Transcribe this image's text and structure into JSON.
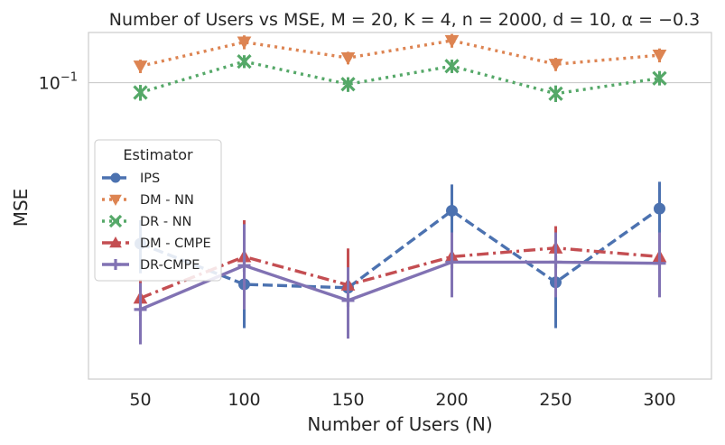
{
  "chart_data": {
    "type": "line",
    "title": "Number of Users vs MSE,  M = 20, K = 4, n = 2000, d = 10, α = −0.3",
    "xlabel": "Number of Users (N)",
    "ylabel": "MSE",
    "x": [
      50,
      100,
      150,
      200,
      250,
      300
    ],
    "x_tick_labels": [
      "50",
      "100",
      "150",
      "200",
      "250",
      "300"
    ],
    "y_scale": "log",
    "y_tick_label": "10−1",
    "y_tick_value": 0.1,
    "ylim": [
      0.00695,
      0.157
    ],
    "grid": true,
    "legend": {
      "title": "Estimator",
      "placement": "center-left"
    },
    "series": [
      {
        "name": "IPS",
        "color": "#4c72b0",
        "marker": "circle",
        "dash": "dashed",
        "values": [
          0.0235,
          0.0163,
          0.0158,
          0.0316,
          0.0166,
          0.0322
        ],
        "ci_low": [
          0.018,
          0.011,
          0.0115,
          0.022,
          0.011,
          0.021
        ],
        "ci_high": [
          0.029,
          0.022,
          0.021,
          0.04,
          0.024,
          0.041
        ]
      },
      {
        "name": "DM - NN",
        "color": "#dd8452",
        "marker": "triangle-down",
        "dash": "dotted",
        "values": [
          0.116,
          0.144,
          0.125,
          0.146,
          0.118,
          0.128
        ],
        "ci_low": [
          0.109,
          0.135,
          0.118,
          0.137,
          0.111,
          0.12
        ],
        "ci_high": [
          0.123,
          0.153,
          0.132,
          0.155,
          0.125,
          0.136
        ]
      },
      {
        "name": "DR - NN",
        "color": "#55a868",
        "marker": "x",
        "dash": "dotted",
        "values": [
          0.0915,
          0.121,
          0.0986,
          0.116,
          0.0906,
          0.104
        ],
        "ci_low": [
          0.085,
          0.114,
          0.092,
          0.109,
          0.084,
          0.0975
        ],
        "ci_high": [
          0.098,
          0.128,
          0.105,
          0.123,
          0.0975,
          0.111
        ]
      },
      {
        "name": "DM - CMPE",
        "color": "#c44e52",
        "marker": "triangle-up",
        "dash": "dashdot",
        "values": [
          0.0144,
          0.0209,
          0.0162,
          0.0209,
          0.0226,
          0.0209
        ],
        "ci_low": [
          0.011,
          0.014,
          0.012,
          0.016,
          0.0185,
          0.0165
        ],
        "ci_high": [
          0.017,
          0.029,
          0.0225,
          0.025,
          0.0275,
          0.026
        ]
      },
      {
        "name": "DR-CMPE",
        "color": "#8172b3",
        "marker": "plus",
        "dash": "solid",
        "values": [
          0.013,
          0.0193,
          0.0141,
          0.0199,
          0.0199,
          0.0197
        ],
        "ci_low": [
          0.0095,
          0.013,
          0.01,
          0.0145,
          0.0145,
          0.0145
        ],
        "ci_high": [
          0.0165,
          0.028,
          0.019,
          0.026,
          0.026,
          0.026
        ]
      }
    ]
  }
}
